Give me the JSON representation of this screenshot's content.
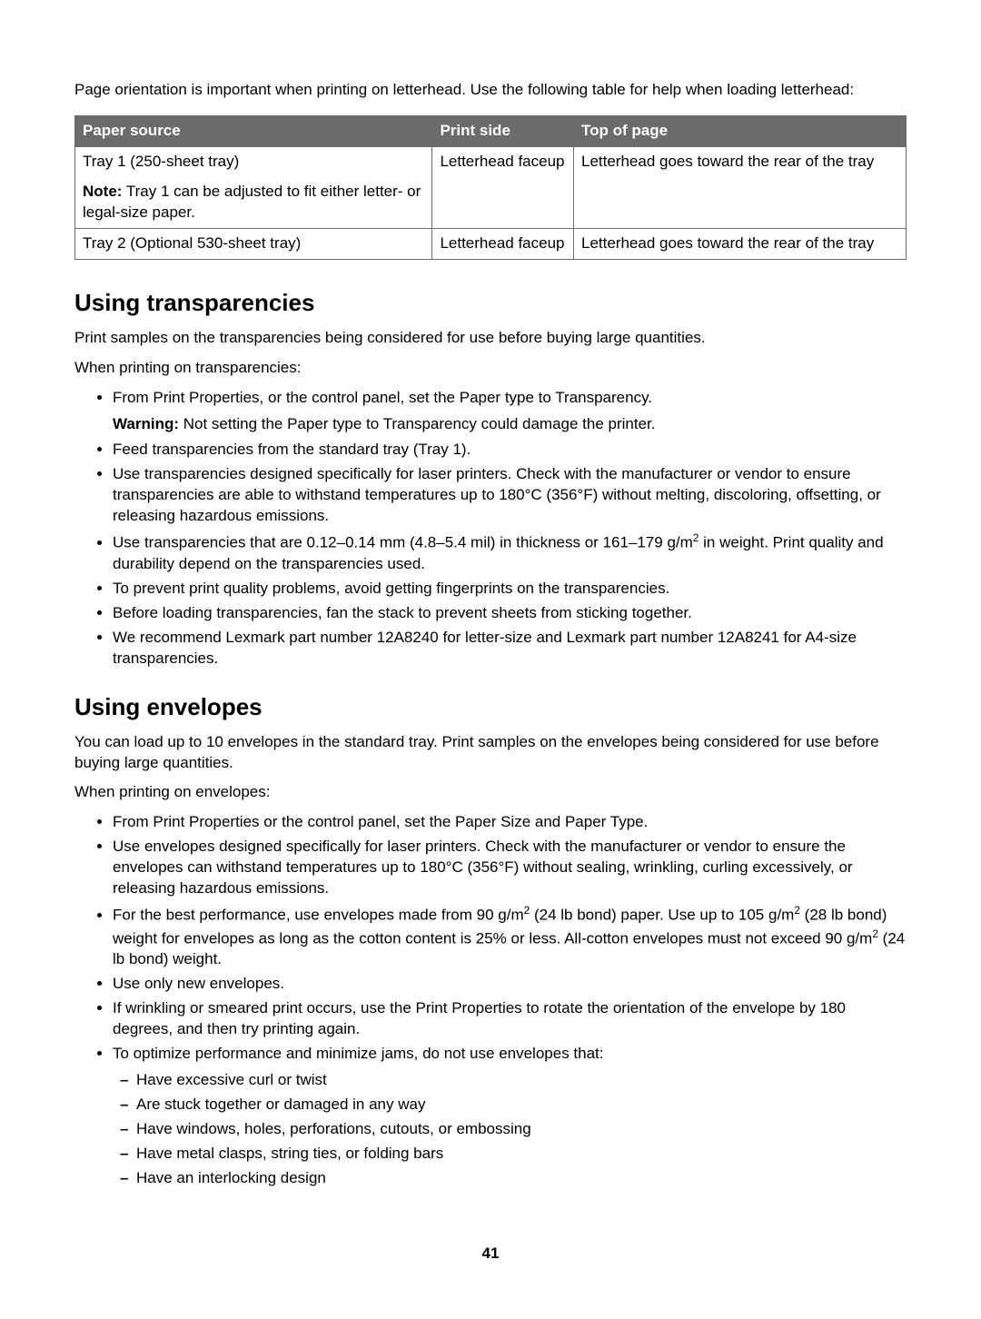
{
  "intro": "Page orientation is important when printing on letterhead. Use the following table for help when loading letterhead:",
  "table": {
    "headers": {
      "source": "Paper source",
      "print_side": "Print side",
      "top_of_page": "Top of page"
    },
    "row1": {
      "source_main": "Tray 1 (250-sheet tray)",
      "source_note_label": "Note:",
      "source_note": " Tray 1 can be adjusted to fit either letter- or legal-size paper.",
      "print_side": "Letterhead faceup",
      "top_of_page": "Letterhead goes toward the rear of the tray"
    },
    "row2": {
      "source": "Tray 2 (Optional 530-sheet tray)",
      "print_side": "Letterhead faceup",
      "top_of_page": "Letterhead goes toward the rear of the tray"
    }
  },
  "transparencies": {
    "heading": "Using transparencies",
    "p1": "Print samples on the transparencies being considered for use before buying large quantities.",
    "p2": "When printing on transparencies:",
    "b1": "From Print Properties, or the control panel, set the Paper type to Transparency.",
    "warn_label": "Warning:",
    "warn": " Not setting the Paper type to Transparency could damage the printer.",
    "b2": "Feed transparencies from the standard tray (Tray 1).",
    "b3": "Use transparencies designed specifically for laser printers. Check with the manufacturer or vendor to ensure transparencies are able to withstand temperatures up to 180°C (356°F) without melting, discoloring, offsetting, or releasing hazardous emissions.",
    "b4a": "Use transparencies that are 0.12–0.14 mm (4.8–5.4 mil) in thickness or 161–179 g/m",
    "b4b": " in weight. Print quality and durability depend on the transparencies used.",
    "b5": "To prevent print quality problems, avoid getting fingerprints on the transparencies.",
    "b6": "Before loading transparencies, fan the stack to prevent sheets from sticking together.",
    "b7": "We recommend Lexmark part number 12A8240 for letter-size and Lexmark part number 12A8241 for A4-size transparencies."
  },
  "envelopes": {
    "heading": "Using envelopes",
    "p1": "You can load up to 10 envelopes in the standard tray. Print samples on the envelopes being considered for use before buying large quantities.",
    "p2": "When printing on envelopes:",
    "b1": "From Print Properties or the control panel, set the Paper Size and Paper Type.",
    "b2": "Use envelopes designed specifically for laser printers. Check with the manufacturer or vendor to ensure the envelopes can withstand temperatures up to 180°C (356°F) without sealing, wrinkling, curling excessively, or releasing hazardous emissions.",
    "b3a": "For the best performance, use envelopes made from 90 g/m",
    "b3b": " (24 lb bond) paper. Use up to 105 g/m",
    "b3c": " (28 lb bond) weight for envelopes as long as the cotton content is 25% or less. All-cotton envelopes must not exceed 90 g/m",
    "b3d": " (24 lb bond) weight.",
    "b4": "Use only new envelopes.",
    "b5": "If wrinkling or smeared print occurs, use the Print Properties to rotate the orientation of the envelope by 180 degrees, and then try printing again.",
    "b6": "To optimize performance and minimize jams, do not use envelopes that:",
    "sub": {
      "s1": "Have excessive curl or twist",
      "s2": "Are stuck together or damaged in any way",
      "s3": "Have windows, holes, perforations, cutouts, or embossing",
      "s4": "Have metal clasps, string ties, or folding bars",
      "s5": "Have an interlocking design"
    }
  },
  "page_number": "41",
  "colors": {
    "header_bg": "#6b6b6b",
    "header_text": "#ffffff",
    "border": "#6b6b6b",
    "text": "#000000",
    "background": "#ffffff"
  }
}
